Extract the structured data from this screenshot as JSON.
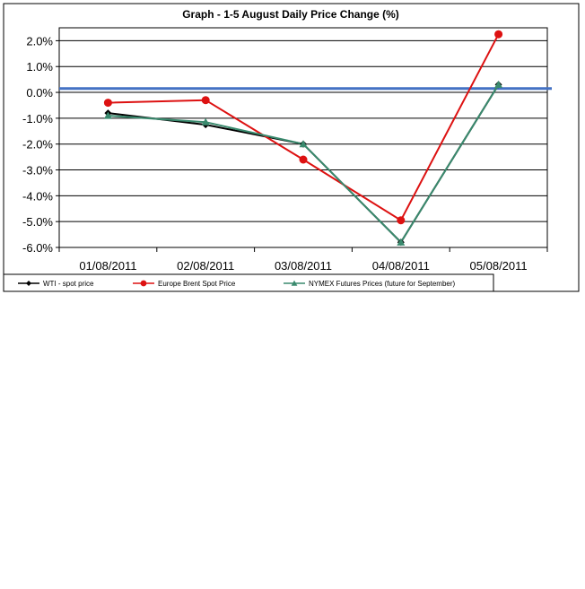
{
  "chart_data": {
    "type": "line",
    "title": "Graph -  1-5 August Daily Price Change (%)",
    "xlabel": "",
    "ylabel": "",
    "categories": [
      "01/08/2011",
      "02/08/2011",
      "03/08/2011",
      "04/08/2011",
      "05/08/2011"
    ],
    "ylim": [
      -6.0,
      2.5
    ],
    "yticks": [
      2.0,
      1.0,
      0.0,
      -1.0,
      -2.0,
      -3.0,
      -4.0,
      -5.0,
      -6.0
    ],
    "ytick_labels": [
      "2.0%",
      "1.0%",
      "0.0%",
      "-1.0%",
      "-2.0%",
      "-3.0%",
      "-4.0%",
      "-5.0%",
      "-6.0%"
    ],
    "grid": true,
    "legend_position": "bottom",
    "reference_line": {
      "value": 0.15,
      "color": "#4472c4"
    },
    "series": [
      {
        "name": "WTI - spot price",
        "values": [
          -0.8,
          -1.25,
          -2.0,
          -5.8,
          0.3
        ],
        "color": "#000000",
        "marker": "diamond"
      },
      {
        "name": "Europe Brent Spot Price",
        "values": [
          -0.4,
          -0.3,
          -2.6,
          -4.95,
          2.25
        ],
        "color": "#dd1111",
        "marker": "circle"
      },
      {
        "name": "NYMEX Futures Prices (future for September)",
        "values": [
          -0.9,
          -1.15,
          -2.0,
          -5.8,
          0.3
        ],
        "color": "#3a8a6e",
        "marker": "triangle"
      }
    ]
  }
}
